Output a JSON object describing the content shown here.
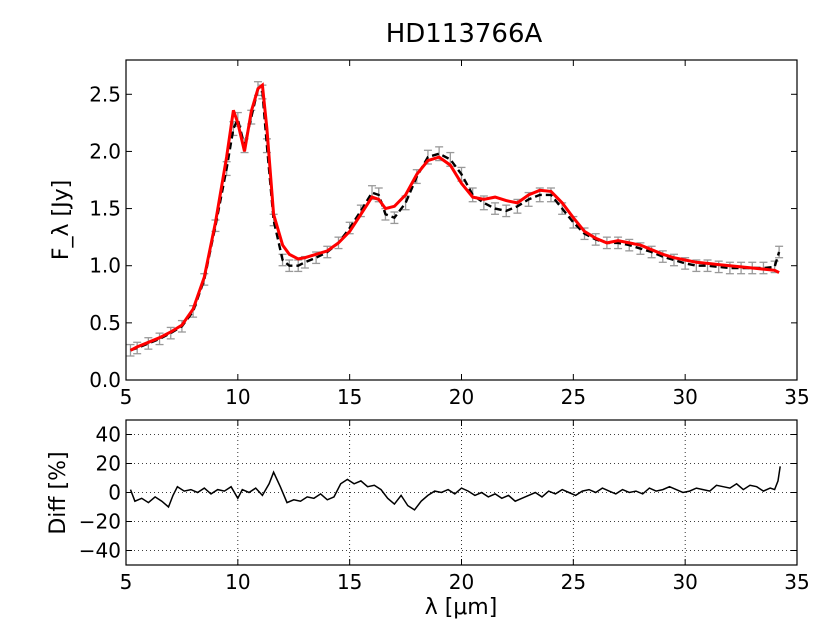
{
  "chart_data": [
    {
      "type": "line",
      "title": "HD113766A",
      "ylabel": "F_λ [Jy]",
      "xlim": [
        5,
        35
      ],
      "ylim": [
        0.0,
        2.8
      ],
      "xticks": [
        "5",
        "10",
        "15",
        "20",
        "25",
        "30",
        "35"
      ],
      "yticks": [
        "0.0",
        "0.5",
        "1.0",
        "1.5",
        "2.0",
        "2.5"
      ],
      "grid": false,
      "series": [
        {
          "style": "observed spectrum with error bars (black dashed, gray error bars)",
          "color": "#000000",
          "errcolor": "#999999",
          "x": [
            5.2,
            5.5,
            6.0,
            6.5,
            7.0,
            7.5,
            8.0,
            8.5,
            9.0,
            9.5,
            9.8,
            10.0,
            10.3,
            10.6,
            10.9,
            11.1,
            11.3,
            11.6,
            12.0,
            12.3,
            12.7,
            13.0,
            13.5,
            14.0,
            14.5,
            15.0,
            15.5,
            16.0,
            16.3,
            16.6,
            17.0,
            17.5,
            18.0,
            18.5,
            19.0,
            19.5,
            20.0,
            20.5,
            21.0,
            21.5,
            22.0,
            22.5,
            23.0,
            23.5,
            24.0,
            24.5,
            25.0,
            25.5,
            26.0,
            26.5,
            27.0,
            27.5,
            28.0,
            28.5,
            29.0,
            29.5,
            30.0,
            30.5,
            31.0,
            31.5,
            32.0,
            32.5,
            33.0,
            33.5,
            34.0,
            34.2
          ],
          "y": [
            0.26,
            0.28,
            0.32,
            0.36,
            0.41,
            0.47,
            0.6,
            0.88,
            1.35,
            1.85,
            2.2,
            2.28,
            2.05,
            2.3,
            2.55,
            2.52,
            2.05,
            1.4,
            1.05,
            1.0,
            1.0,
            1.03,
            1.07,
            1.12,
            1.2,
            1.33,
            1.48,
            1.64,
            1.62,
            1.45,
            1.42,
            1.55,
            1.78,
            1.95,
            1.98,
            1.93,
            1.8,
            1.62,
            1.55,
            1.5,
            1.48,
            1.52,
            1.58,
            1.62,
            1.62,
            1.5,
            1.38,
            1.28,
            1.23,
            1.2,
            1.2,
            1.18,
            1.15,
            1.12,
            1.08,
            1.05,
            1.02,
            1.0,
            1.0,
            0.99,
            0.98,
            0.98,
            0.98,
            0.98,
            0.99,
            1.12
          ],
          "err": 0.05
        },
        {
          "style": "model fit (red solid)",
          "color": "#ff0000",
          "x": [
            5.2,
            5.5,
            6.0,
            6.5,
            7.0,
            7.5,
            8.0,
            8.5,
            9.0,
            9.5,
            9.8,
            10.0,
            10.3,
            10.6,
            10.9,
            11.1,
            11.3,
            11.6,
            12.0,
            12.3,
            12.7,
            13.0,
            13.5,
            14.0,
            14.5,
            15.0,
            15.5,
            16.0,
            16.3,
            16.6,
            17.0,
            17.5,
            18.0,
            18.5,
            19.0,
            19.5,
            20.0,
            20.5,
            21.0,
            21.5,
            22.0,
            22.5,
            23.0,
            23.5,
            24.0,
            24.5,
            25.0,
            25.5,
            26.0,
            26.5,
            27.0,
            27.5,
            28.0,
            28.5,
            29.0,
            29.5,
            30.0,
            30.5,
            31.0,
            31.5,
            32.0,
            32.5,
            33.0,
            33.5,
            34.0,
            34.2
          ],
          "y": [
            0.26,
            0.29,
            0.33,
            0.37,
            0.42,
            0.48,
            0.62,
            0.9,
            1.38,
            1.95,
            2.36,
            2.25,
            2.0,
            2.35,
            2.55,
            2.58,
            2.2,
            1.45,
            1.18,
            1.1,
            1.06,
            1.07,
            1.1,
            1.13,
            1.2,
            1.3,
            1.45,
            1.6,
            1.58,
            1.5,
            1.52,
            1.62,
            1.8,
            1.92,
            1.95,
            1.88,
            1.72,
            1.6,
            1.58,
            1.6,
            1.57,
            1.55,
            1.62,
            1.66,
            1.65,
            1.55,
            1.42,
            1.3,
            1.24,
            1.2,
            1.22,
            1.2,
            1.18,
            1.14,
            1.1,
            1.07,
            1.05,
            1.03,
            1.02,
            1.01,
            1.0,
            0.99,
            0.98,
            0.97,
            0.96,
            0.94
          ]
        }
      ]
    },
    {
      "type": "line",
      "xlabel": "λ [μm]",
      "ylabel": "Diff [%]",
      "xlim": [
        5,
        35
      ],
      "ylim": [
        -50,
        50
      ],
      "xticks": [
        "5",
        "10",
        "15",
        "20",
        "25",
        "30",
        "35"
      ],
      "yticks": [
        "40",
        "20",
        "0",
        "−20",
        "−40"
      ],
      "ytick_values": [
        40,
        20,
        0,
        -20,
        -40
      ],
      "grid": true,
      "series": [
        {
          "color": "#000000",
          "x": [
            5.2,
            5.4,
            5.7,
            6.0,
            6.3,
            6.6,
            6.9,
            7.1,
            7.3,
            7.6,
            7.9,
            8.2,
            8.5,
            8.8,
            9.1,
            9.4,
            9.7,
            10.0,
            10.2,
            10.5,
            10.8,
            11.1,
            11.4,
            11.6,
            11.9,
            12.2,
            12.5,
            12.8,
            13.1,
            13.4,
            13.7,
            14.0,
            14.3,
            14.6,
            14.9,
            15.2,
            15.5,
            15.8,
            16.1,
            16.4,
            16.7,
            17.0,
            17.3,
            17.6,
            17.9,
            18.2,
            18.5,
            18.8,
            19.1,
            19.4,
            19.7,
            20.0,
            20.3,
            20.6,
            20.9,
            21.2,
            21.5,
            21.8,
            22.1,
            22.4,
            22.7,
            23.0,
            23.3,
            23.6,
            23.9,
            24.2,
            24.5,
            24.8,
            25.1,
            25.4,
            25.7,
            26.0,
            26.3,
            26.6,
            26.9,
            27.2,
            27.5,
            27.8,
            28.1,
            28.4,
            28.7,
            29.0,
            29.3,
            29.6,
            29.9,
            30.2,
            30.5,
            30.8,
            31.1,
            31.4,
            31.7,
            32.0,
            32.3,
            32.6,
            32.9,
            33.2,
            33.5,
            33.8,
            34.0,
            34.15,
            34.25
          ],
          "y": [
            2,
            -6,
            -4,
            -7,
            -3,
            -6,
            -10,
            -2,
            4,
            1,
            2,
            0,
            3,
            -1,
            2,
            1,
            4,
            -4,
            2,
            0,
            3,
            -2,
            6,
            14,
            4,
            -7,
            -5,
            -6,
            -3,
            -4,
            -1,
            -5,
            -3,
            6,
            9,
            6,
            8,
            4,
            5,
            2,
            -4,
            -8,
            -2,
            -9,
            -12,
            -6,
            -2,
            1,
            0,
            2,
            -1,
            3,
            1,
            -2,
            0,
            -3,
            -1,
            -4,
            -2,
            -6,
            -4,
            -2,
            0,
            -3,
            1,
            -1,
            2,
            0,
            -2,
            1,
            2,
            0,
            3,
            1,
            -1,
            2,
            0,
            1,
            -1,
            3,
            1,
            2,
            4,
            2,
            0,
            1,
            3,
            2,
            1,
            5,
            4,
            3,
            6,
            2,
            5,
            4,
            1,
            3,
            2,
            8,
            18
          ]
        }
      ]
    }
  ]
}
